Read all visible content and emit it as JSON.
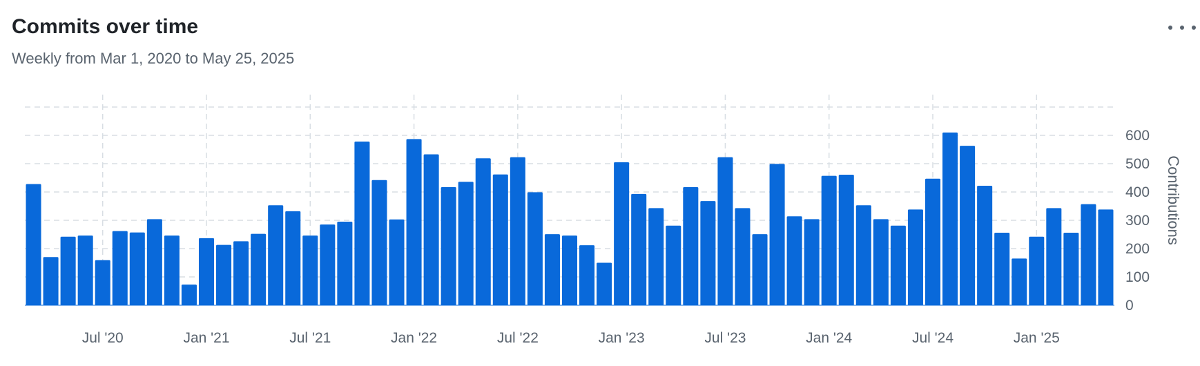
{
  "header": {
    "title": "Commits over time",
    "subtitle": "Weekly from Mar 1, 2020 to May 25, 2025"
  },
  "colors": {
    "bar": "#0969da",
    "grid": "#d8dee4",
    "text": "#59636e"
  },
  "chart_data": {
    "type": "bar",
    "title": "Commits over time",
    "subtitle": "Weekly from Mar 1, 2020 to May 25, 2025",
    "ylabel": "Contributions",
    "xlabel": "",
    "ylim": [
      0,
      700
    ],
    "yticks": [
      0,
      100,
      200,
      300,
      400,
      500,
      600
    ],
    "grid": true,
    "x_tick_labels": [
      "Jul '20",
      "Jan '21",
      "Jul '21",
      "Jan '22",
      "Jul '22",
      "Jan '23",
      "Jul '23",
      "Jan '24",
      "Jul '24",
      "Jan '25"
    ],
    "x_tick_bar_positions": [
      4.5,
      10.5,
      16.5,
      22.5,
      28.5,
      34.5,
      40.5,
      46.5,
      52.5,
      58.5
    ],
    "values": [
      428,
      170,
      242,
      246,
      159,
      262,
      257,
      304,
      246,
      73,
      237,
      213,
      226,
      252,
      353,
      332,
      246,
      285,
      295,
      578,
      442,
      303,
      587,
      533,
      417,
      436,
      519,
      462,
      523,
      399,
      251,
      246,
      212,
      150,
      505,
      393,
      343,
      281,
      417,
      368,
      523,
      343,
      251,
      499,
      314,
      304,
      457,
      461,
      353,
      304,
      281,
      338,
      447,
      610,
      563,
      422,
      256,
      165,
      242,
      343,
      256,
      357,
      338
    ]
  }
}
